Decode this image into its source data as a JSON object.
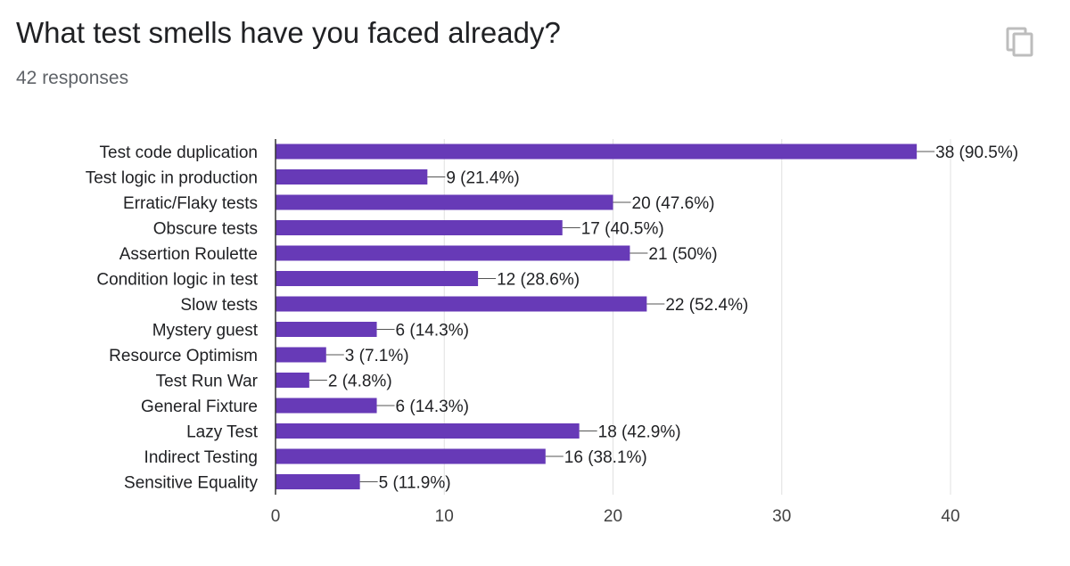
{
  "header": {
    "title": "What test smells have you faced already?",
    "responses": "42 responses",
    "copy_icon": "copy-icon"
  },
  "colors": {
    "bar": "#673ab7",
    "grid": "#e0e0e0",
    "axis": "#333333"
  },
  "chart_data": {
    "type": "bar",
    "orientation": "horizontal",
    "title": "What test smells have you faced already?",
    "categories": [
      "Test code duplication",
      "Test logic in production",
      "Erratic/Flaky tests",
      "Obscure tests",
      "Assertion Roulette",
      "Condition logic in test",
      "Slow tests",
      "Mystery guest",
      "Resource Optimism",
      "Test Run War",
      "General Fixture",
      "Lazy Test",
      "Indirect Testing",
      "Sensitive Equality"
    ],
    "values": [
      38,
      9,
      20,
      17,
      21,
      12,
      22,
      6,
      3,
      2,
      6,
      18,
      16,
      5
    ],
    "labels": [
      "38 (90.5%)",
      "9 (21.4%)",
      "20 (47.6%)",
      "17 (40.5%)",
      "21 (50%)",
      "12 (28.6%)",
      "22 (52.4%)",
      "6 (14.3%)",
      "3 (7.1%)",
      "2 (4.8%)",
      "6 (14.3%)",
      "18 (42.9%)",
      "16 (38.1%)",
      "5 (11.9%)"
    ],
    "xlim": [
      0,
      40
    ],
    "xticks": [
      0,
      10,
      20,
      30,
      40
    ],
    "grid": true,
    "xlabel": "",
    "ylabel": ""
  }
}
